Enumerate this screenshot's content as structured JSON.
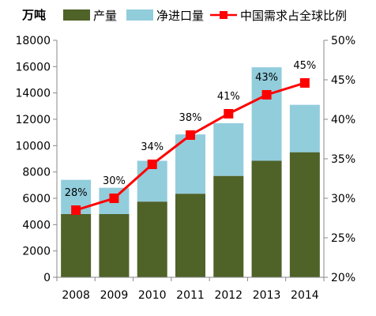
{
  "chart_data": {
    "type": "bar",
    "stacked": true,
    "unit_label": "万吨",
    "categories": [
      "2008",
      "2009",
      "2010",
      "2011",
      "2012",
      "2013",
      "2014"
    ],
    "series": [
      {
        "name": "产量",
        "type": "bar",
        "axis": "left",
        "values": [
          4800,
          4800,
          5750,
          6350,
          7700,
          8850,
          9500
        ]
      },
      {
        "name": "净进口量",
        "type": "bar",
        "axis": "left",
        "values": [
          2600,
          2000,
          3100,
          4500,
          4000,
          7100,
          3600
        ]
      },
      {
        "name": "中国需求占全球比例",
        "type": "line",
        "axis": "right",
        "values": [
          28.5,
          30,
          34.3,
          38,
          40.7,
          43.1,
          44.6
        ],
        "labels": [
          "28%",
          "30%",
          "34%",
          "38%",
          "41%",
          "43%",
          "45%"
        ]
      }
    ],
    "y_left": {
      "min": 0,
      "max": 18000,
      "ticks": [
        "0",
        "2000",
        "4000",
        "6000",
        "8000",
        "10000",
        "12000",
        "14000",
        "16000",
        "18000"
      ]
    },
    "y_right": {
      "min": 20,
      "max": 50,
      "ticks": [
        "20%",
        "25%",
        "30%",
        "35%",
        "40%",
        "45%",
        "50%"
      ]
    },
    "grid": false,
    "legend_position": "top",
    "colors": {
      "production": "#4f6228",
      "net_import": "#92cddc",
      "line": "#ff0000",
      "axis": "#888888"
    }
  }
}
